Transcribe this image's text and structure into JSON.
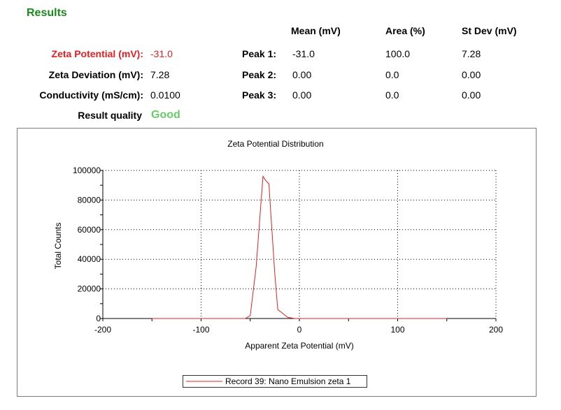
{
  "results_title": "Results",
  "headers": {
    "mean": "Mean (mV)",
    "area": "Area (%)",
    "stdev": "St Dev (mV)"
  },
  "summary": [
    {
      "label": "Zeta Potential (mV):",
      "value": "-31.0"
    },
    {
      "label": "Zeta Deviation (mV):",
      "value": "7.28"
    },
    {
      "label": "Conductivity (mS/cm):",
      "value": "0.0100"
    }
  ],
  "quality": {
    "label": "Result quality",
    "value": "Good"
  },
  "peaks": [
    {
      "label": "Peak 1:",
      "mean": "-31.0",
      "area": "100.0",
      "stdev": "7.28"
    },
    {
      "label": "Peak 2:",
      "mean": "0.00",
      "area": "0.0",
      "stdev": "0.00"
    },
    {
      "label": "Peak 3:",
      "mean": "0.00",
      "area": "0.0",
      "stdev": "0.00"
    }
  ],
  "colors": {
    "title": "#1a8a1a",
    "highlight": "#e02020",
    "good": "#66cc66",
    "series": "#e02020"
  },
  "chart_data": {
    "type": "line",
    "title": "Zeta Potential Distribution",
    "xlabel": "Apparent Zeta Potential (mV)",
    "ylabel": "Total Counts",
    "xlim": [
      -200,
      200
    ],
    "ylim": [
      0,
      100000
    ],
    "xticks": [
      "-200",
      "-100",
      "0",
      "100",
      "200"
    ],
    "yticks": [
      "0",
      "20000",
      "40000",
      "60000",
      "80000",
      "100000"
    ],
    "grid": true,
    "legend_position": "bottom-center",
    "series": [
      {
        "name": "Record 39: Nano Emulsion zeta 1",
        "x": [
          -150,
          -100,
          -55,
          -50,
          -44,
          -40,
          -37,
          -34,
          -31,
          -28,
          -25,
          -22,
          -18,
          -12,
          -5,
          0,
          50,
          100,
          150
        ],
        "y": [
          0,
          0,
          0,
          2000,
          35000,
          70000,
          96000,
          93000,
          91000,
          60000,
          30000,
          6000,
          4000,
          800,
          0,
          0,
          0,
          0,
          0
        ]
      }
    ]
  }
}
